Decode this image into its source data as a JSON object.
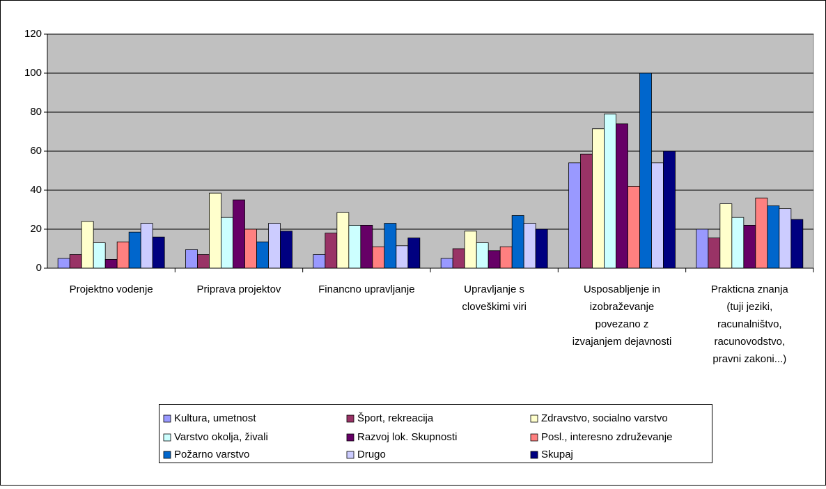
{
  "chart_data": {
    "type": "bar",
    "categories": [
      "Projektno vodenje",
      "Priprava projektov",
      "Financno upravljanje",
      "Upravljanje s\ncloveškimi viri",
      "Usposabljenje in\nizobraževanje\npovezano z\nizvajanjem dejavnosti",
      "Prakticna znanja\n(tuji jeziki,\nracunalništvo,\nracunovodstvo,\npravni zakoni...)"
    ],
    "series": [
      {
        "name": "Kultura, umetnost",
        "color": "#9999ff",
        "values": [
          5,
          9.5,
          7,
          5,
          54,
          20
        ]
      },
      {
        "name": "Šport, rekreacija",
        "color": "#993366",
        "values": [
          7,
          7,
          18,
          10,
          58.5,
          15.5
        ]
      },
      {
        "name": "Zdravstvo, socialno varstvo",
        "color": "#ffffcc",
        "values": [
          24,
          38.5,
          28.5,
          19,
          71.5,
          33
        ]
      },
      {
        "name": "Varstvo okolja, živali",
        "color": "#ccffff",
        "values": [
          13,
          26,
          22,
          13,
          79,
          26
        ]
      },
      {
        "name": "Razvoj lok. Skupnosti",
        "color": "#660066",
        "values": [
          4.5,
          35,
          22,
          9,
          74,
          22
        ]
      },
      {
        "name": "Posl., interesno združevanje",
        "color": "#ff8080",
        "values": [
          13.5,
          20,
          11,
          11,
          42,
          36
        ]
      },
      {
        "name": "Požarno varstvo",
        "color": "#0066cc",
        "values": [
          18.5,
          13.5,
          23,
          27,
          100,
          32
        ]
      },
      {
        "name": "Drugo",
        "color": "#ccccff",
        "values": [
          23,
          23,
          11.5,
          23,
          54,
          30.5
        ]
      },
      {
        "name": "Skupaj",
        "color": "#000080",
        "values": [
          16,
          19,
          15.5,
          20,
          60,
          25
        ]
      }
    ],
    "ylim": [
      0,
      120
    ],
    "yticks": [
      0,
      20,
      40,
      60,
      80,
      100,
      120
    ],
    "grid": true
  }
}
